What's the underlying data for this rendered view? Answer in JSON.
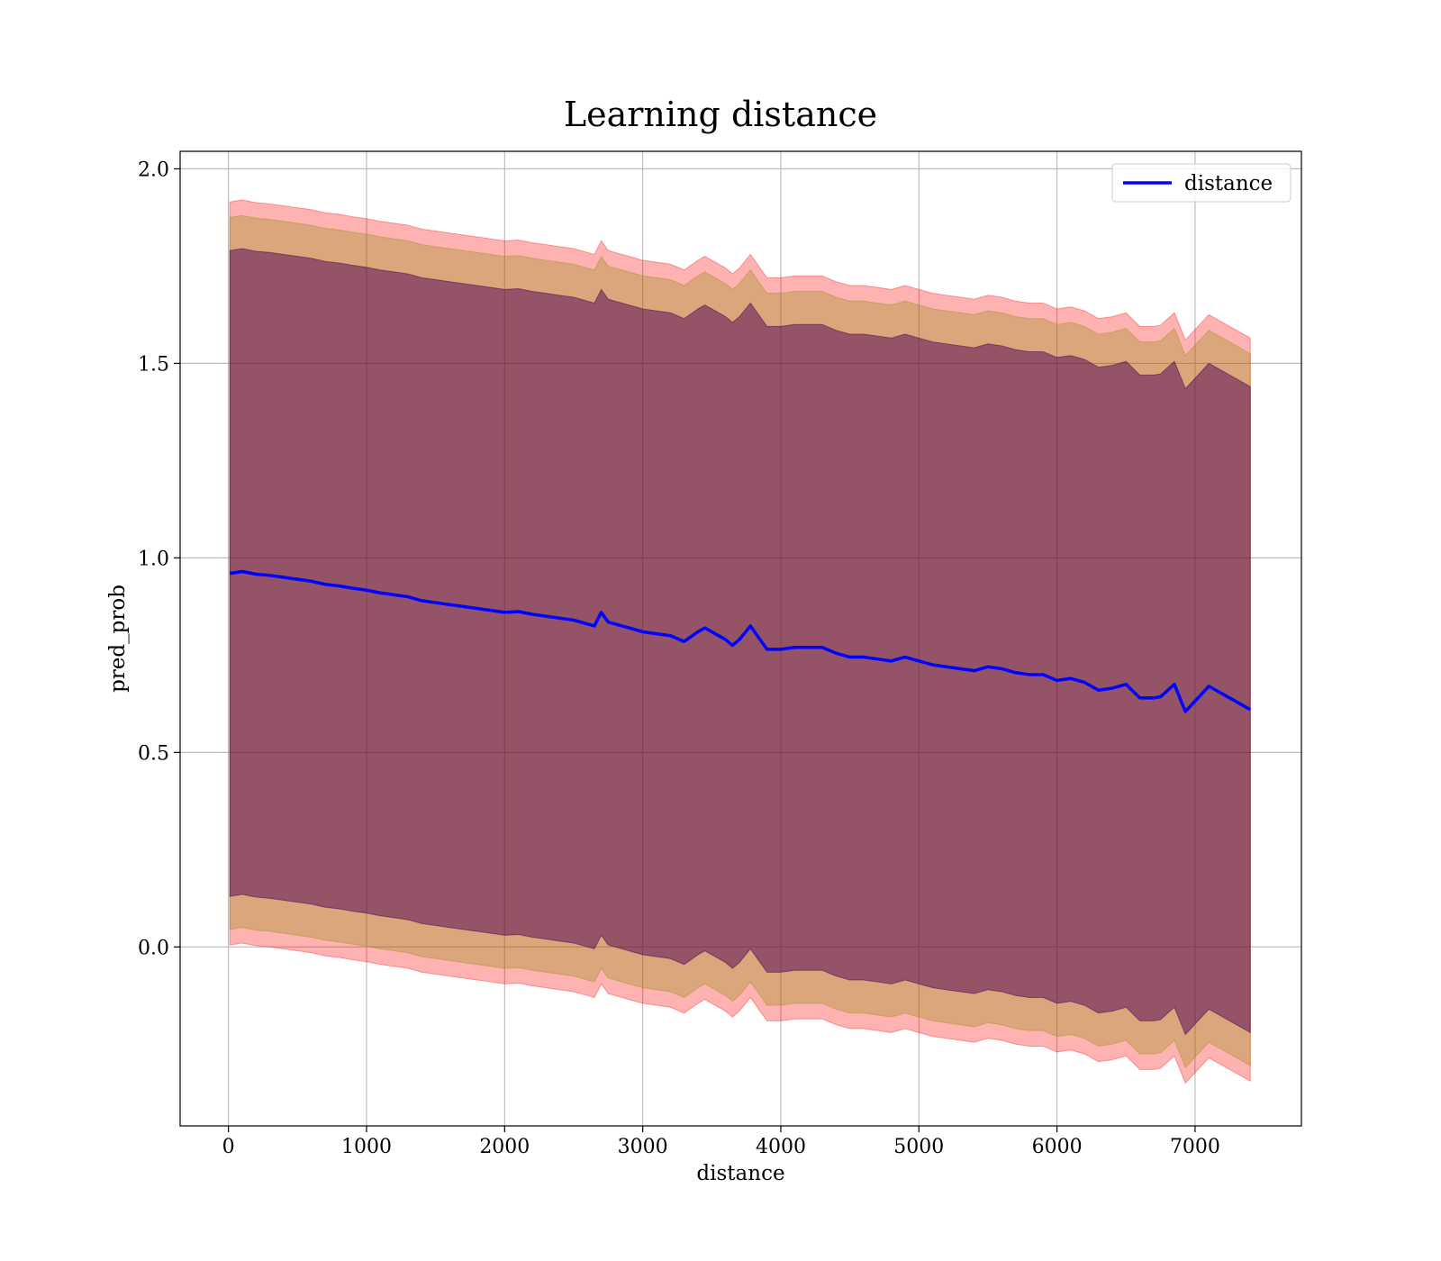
{
  "chart_data": {
    "type": "line",
    "title": "Learning distance",
    "xlabel": "distance",
    "ylabel": "pred_prob",
    "xlim": [
      -350,
      7770
    ],
    "ylim": [
      -0.46,
      2.045
    ],
    "x_ticks": [
      0,
      1000,
      2000,
      3000,
      4000,
      5000,
      6000,
      7000
    ],
    "x_tick_labels": [
      "0",
      "1000",
      "2000",
      "3000",
      "4000",
      "5000",
      "6000",
      "7000"
    ],
    "y_ticks": [
      0.0,
      0.5,
      1.0,
      1.5,
      2.0
    ],
    "y_tick_labels": [
      "0.0",
      "0.5",
      "1.0",
      "1.5",
      "2.0"
    ],
    "grid": true,
    "legend_position": "upper right",
    "colors": {
      "line": "#0000ff",
      "band_outer": "#ff0000",
      "band_middle": "#8b8b00",
      "band_inner": "#4b0050",
      "grid": "#b0b0b0"
    },
    "series": [
      {
        "name": "distance",
        "x": [
          10,
          100,
          200,
          300,
          400,
          500,
          600,
          700,
          800,
          900,
          1000,
          1100,
          1200,
          1300,
          1400,
          1500,
          1600,
          1700,
          1800,
          1900,
          2000,
          2100,
          2200,
          2300,
          2400,
          2500,
          2600,
          2650,
          2700,
          2750,
          2800,
          2900,
          3000,
          3100,
          3200,
          3300,
          3400,
          3450,
          3500,
          3600,
          3650,
          3700,
          3780,
          3850,
          3900,
          4000,
          4100,
          4200,
          4300,
          4400,
          4500,
          4600,
          4700,
          4800,
          4900,
          5000,
          5100,
          5200,
          5300,
          5400,
          5500,
          5600,
          5700,
          5800,
          5900,
          6000,
          6100,
          6200,
          6300,
          6400,
          6500,
          6600,
          6700,
          6750,
          6850,
          6930,
          7100,
          7400
        ],
        "y": [
          0.96,
          0.965,
          0.958,
          0.955,
          0.95,
          0.945,
          0.94,
          0.932,
          0.928,
          0.922,
          0.917,
          0.91,
          0.905,
          0.9,
          0.89,
          0.885,
          0.88,
          0.875,
          0.87,
          0.865,
          0.86,
          0.862,
          0.855,
          0.85,
          0.845,
          0.84,
          0.83,
          0.825,
          0.86,
          0.835,
          0.83,
          0.82,
          0.81,
          0.805,
          0.8,
          0.785,
          0.81,
          0.82,
          0.81,
          0.79,
          0.775,
          0.79,
          0.825,
          0.79,
          0.765,
          0.765,
          0.77,
          0.77,
          0.77,
          0.755,
          0.745,
          0.745,
          0.74,
          0.735,
          0.745,
          0.735,
          0.725,
          0.72,
          0.715,
          0.71,
          0.72,
          0.715,
          0.705,
          0.7,
          0.7,
          0.685,
          0.69,
          0.68,
          0.66,
          0.665,
          0.675,
          0.64,
          0.64,
          0.643,
          0.675,
          0.605,
          0.67,
          0.61
        ],
        "band_outer_halfwidth": 0.955,
        "band_middle_halfwidth": 0.915,
        "band_inner_halfwidth": 0.83
      }
    ]
  }
}
